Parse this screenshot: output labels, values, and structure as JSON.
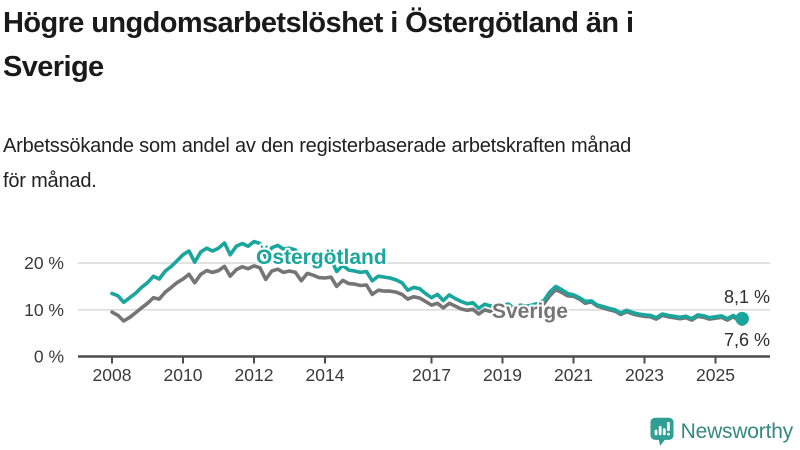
{
  "page": {
    "title_lines": [
      "Högre ungdomsarbetslöshet i Östergötland än i",
      "Sverige"
    ],
    "subtitle_lines": [
      "Arbetssökande som andel av den registerbaserade arbetskraften månad",
      "för månad."
    ]
  },
  "colors": {
    "ostergotland": "#1aa59d",
    "sverige": "#757575",
    "grid": "#dcdcdc",
    "axis": "#4d4d4d",
    "brand_icon": "#2f9f93",
    "brand_text": "#35897f"
  },
  "chart_data": {
    "type": "line",
    "unit": "%",
    "grid": "horizontal",
    "legend_position": "inline",
    "x_range": [
      2008,
      2025.75
    ],
    "y_range": [
      0,
      26
    ],
    "gridline_values": [
      10,
      20
    ],
    "y_ticks": [
      {
        "value": 0,
        "label": "0 %"
      },
      {
        "value": 10,
        "label": "10 %"
      },
      {
        "value": 20,
        "label": "20 %"
      }
    ],
    "x_ticks": [
      {
        "value": 2008,
        "label": "2008"
      },
      {
        "value": 2010,
        "label": "2010"
      },
      {
        "value": 2012,
        "label": "2012"
      },
      {
        "value": 2014,
        "label": "2014"
      },
      {
        "value": 2017,
        "label": "2017"
      },
      {
        "value": 2019,
        "label": "2019"
      },
      {
        "value": 2021,
        "label": "2021"
      },
      {
        "value": 2023,
        "label": "2023"
      },
      {
        "value": 2025,
        "label": "2025"
      }
    ],
    "x": [
      2008,
      2008.17,
      2008.33,
      2008.5,
      2008.67,
      2008.83,
      2009,
      2009.17,
      2009.33,
      2009.5,
      2009.67,
      2009.83,
      2010,
      2010.17,
      2010.33,
      2010.5,
      2010.67,
      2010.83,
      2011,
      2011.17,
      2011.33,
      2011.5,
      2011.67,
      2011.83,
      2012,
      2012.17,
      2012.33,
      2012.5,
      2012.67,
      2012.83,
      2013,
      2013.17,
      2013.33,
      2013.5,
      2013.67,
      2013.83,
      2014,
      2014.17,
      2014.33,
      2014.5,
      2014.67,
      2014.83,
      2015,
      2015.17,
      2015.33,
      2015.5,
      2015.67,
      2015.83,
      2016,
      2016.17,
      2016.33,
      2016.5,
      2016.67,
      2016.83,
      2017,
      2017.17,
      2017.33,
      2017.5,
      2017.67,
      2017.83,
      2018,
      2018.17,
      2018.33,
      2018.5,
      2018.67,
      2018.83,
      2019,
      2019.17,
      2019.33,
      2019.5,
      2019.67,
      2019.83,
      2020,
      2020.17,
      2020.33,
      2020.5,
      2020.67,
      2020.83,
      2021,
      2021.17,
      2021.33,
      2021.5,
      2021.67,
      2021.83,
      2022,
      2022.17,
      2022.33,
      2022.5,
      2022.67,
      2022.83,
      2023,
      2023.17,
      2023.33,
      2023.5,
      2023.67,
      2023.83,
      2024,
      2024.17,
      2024.33,
      2024.5,
      2024.67,
      2024.83,
      2025,
      2025.17,
      2025.33,
      2025.5,
      2025.67,
      2025.75
    ],
    "series": [
      {
        "name": "Östergötland",
        "color": "#1aa59d",
        "end_label": "8,1 %",
        "end_value": 8.1,
        "values": [
          13.5,
          13.0,
          11.6,
          12.6,
          13.6,
          14.8,
          15.8,
          17.2,
          16.6,
          18.3,
          19.3,
          20.5,
          21.8,
          22.6,
          20.2,
          22.4,
          23.2,
          22.6,
          23.2,
          24.3,
          21.8,
          23.6,
          24.2,
          23.6,
          24.6,
          24.2,
          21.2,
          23.3,
          23.8,
          23.0,
          23.2,
          22.8,
          20.6,
          22.2,
          21.8,
          21.0,
          20.5,
          20.8,
          18.2,
          19.5,
          18.5,
          18.3,
          18.0,
          18.2,
          16.2,
          17.2,
          17.0,
          16.8,
          16.4,
          15.8,
          14.2,
          14.8,
          14.5,
          13.5,
          12.6,
          13.3,
          12.0,
          13.2,
          12.4,
          11.8,
          11.3,
          11.5,
          10.3,
          11.2,
          10.8,
          10.9,
          11.0,
          11.2,
          10.3,
          11.0,
          10.8,
          11.0,
          11.4,
          12.0,
          13.8,
          15.0,
          14.3,
          13.5,
          13.2,
          12.6,
          11.8,
          11.9,
          11.0,
          10.7,
          10.3,
          10.0,
          9.3,
          9.9,
          9.4,
          9.1,
          8.9,
          8.8,
          8.3,
          9.1,
          8.8,
          8.6,
          8.4,
          8.6,
          8.1,
          8.9,
          8.7,
          8.3,
          8.5,
          8.7,
          8.1,
          8.8,
          7.9,
          8.1
        ]
      },
      {
        "name": "Sverige",
        "color": "#757575",
        "end_label": "7,6 %",
        "end_value": 7.6,
        "values": [
          9.5,
          8.8,
          7.6,
          8.4,
          9.4,
          10.4,
          11.4,
          12.6,
          12.3,
          13.8,
          14.8,
          15.8,
          16.6,
          17.6,
          15.8,
          17.6,
          18.4,
          18.0,
          18.4,
          19.3,
          17.2,
          18.6,
          19.2,
          18.8,
          19.4,
          19.0,
          16.5,
          18.3,
          18.7,
          18.0,
          18.3,
          18.0,
          16.2,
          17.8,
          17.4,
          16.9,
          16.8,
          17.0,
          15.0,
          16.3,
          15.6,
          15.5,
          15.2,
          15.3,
          13.3,
          14.2,
          14.0,
          14.0,
          13.8,
          13.3,
          12.3,
          12.8,
          12.5,
          11.8,
          11.0,
          11.4,
          10.4,
          11.4,
          10.8,
          10.2,
          9.9,
          10.1,
          9.1,
          10.0,
          9.6,
          9.7,
          9.9,
          10.1,
          9.4,
          10.2,
          10.0,
          10.2,
          10.6,
          11.3,
          13.0,
          14.3,
          13.7,
          13.0,
          12.9,
          12.3,
          11.4,
          11.7,
          10.8,
          10.4,
          10.0,
          9.7,
          9.0,
          9.6,
          9.1,
          8.8,
          8.6,
          8.5,
          8.0,
          8.8,
          8.5,
          8.3,
          8.1,
          8.3,
          7.8,
          8.6,
          8.4,
          8.0,
          8.2,
          8.4,
          7.8,
          8.5,
          7.6,
          7.6
        ]
      }
    ]
  },
  "footer": {
    "brand": "Newsworthy"
  }
}
